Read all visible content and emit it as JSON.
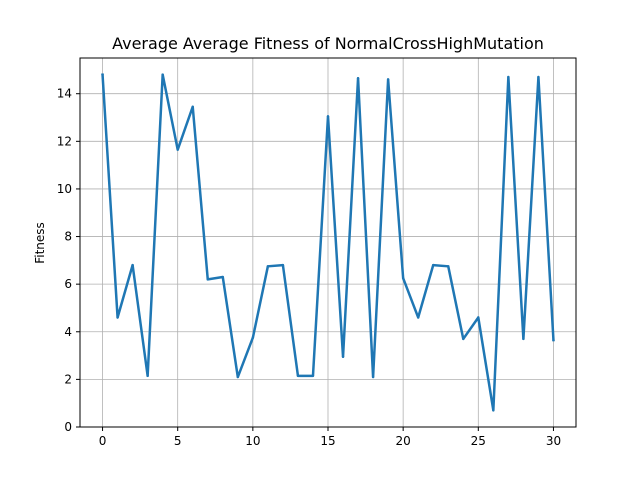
{
  "chart_data": {
    "type": "line",
    "title": "Average Average Fitness of NormalCrossHighMutation",
    "xlabel": "",
    "ylabel": "Fitness",
    "xlim": [
      -1.5,
      31.5
    ],
    "ylim": [
      0,
      15.5
    ],
    "xticks": [
      0,
      5,
      10,
      15,
      20,
      25,
      30
    ],
    "yticks": [
      0,
      2,
      4,
      6,
      8,
      10,
      12,
      14
    ],
    "grid": true,
    "line_color": "#1f77b4",
    "series": [
      {
        "x": [
          0,
          1,
          2,
          3,
          4,
          5,
          6,
          7,
          8,
          9,
          10,
          11,
          12,
          13,
          14,
          15,
          16,
          17,
          18,
          19,
          20,
          21,
          22,
          23,
          24,
          25,
          26,
          27,
          28,
          29,
          30
        ],
        "values": [
          14.8,
          4.6,
          6.8,
          2.15,
          14.8,
          11.65,
          13.45,
          6.2,
          6.3,
          2.1,
          3.75,
          6.75,
          6.8,
          2.15,
          2.15,
          13.05,
          2.95,
          14.65,
          2.1,
          14.6,
          6.25,
          4.6,
          6.8,
          6.75,
          3.7,
          4.6,
          0.7,
          14.7,
          3.7,
          14.7,
          3.65
        ]
      }
    ]
  }
}
